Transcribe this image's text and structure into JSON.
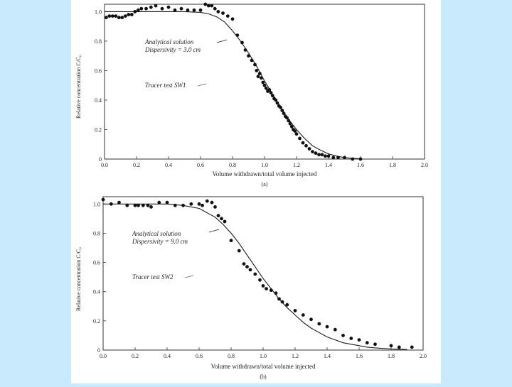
{
  "colors": {
    "background": "#c8eafc",
    "sheet": "#ffffff",
    "ink": "#1a1a1a"
  },
  "chart_data": [
    {
      "type": "scatter",
      "panel": "(a)",
      "xlabel": "Volume withdrawn/total volume injected",
      "ylabel": "Relative concentration C/C₀",
      "xlim": [
        0.0,
        2.0
      ],
      "ylim": [
        0.0,
        1.0
      ],
      "xticks": [
        "0.0",
        "0.2",
        "0.4",
        "0.6",
        "0.8",
        "1.0",
        "1.2",
        "1.4",
        "1.6",
        "1.8",
        "2.0"
      ],
      "yticks": [
        "0",
        "0.2",
        "0.4",
        "0.6",
        "0.8",
        "1.0"
      ],
      "annotations": [
        "Analytical solution",
        "Dispersivity = 3.0 cm",
        "Tracer test SW1"
      ],
      "series": [
        {
          "name": "Analytical solution",
          "kind": "line",
          "x": [
            0.0,
            0.1,
            0.2,
            0.3,
            0.4,
            0.5,
            0.6,
            0.65,
            0.7,
            0.75,
            0.8,
            0.85,
            0.9,
            0.95,
            1.0,
            1.05,
            1.1,
            1.15,
            1.2,
            1.25,
            1.3,
            1.35,
            1.4,
            1.45,
            1.5,
            1.55,
            1.6
          ],
          "y": [
            1.0,
            1.0,
            1.0,
            1.0,
            1.0,
            1.0,
            0.995,
            0.985,
            0.965,
            0.93,
            0.87,
            0.8,
            0.72,
            0.63,
            0.53,
            0.44,
            0.35,
            0.27,
            0.2,
            0.14,
            0.09,
            0.06,
            0.035,
            0.02,
            0.01,
            0.005,
            0.002
          ]
        },
        {
          "name": "Tracer test SW1",
          "kind": "scatter",
          "x": [
            0.01,
            0.03,
            0.05,
            0.07,
            0.09,
            0.11,
            0.13,
            0.15,
            0.17,
            0.19,
            0.21,
            0.23,
            0.26,
            0.29,
            0.32,
            0.36,
            0.4,
            0.44,
            0.48,
            0.52,
            0.56,
            0.6,
            0.63,
            0.65,
            0.67,
            0.69,
            0.71,
            0.74,
            0.77,
            0.8,
            0.83,
            0.86,
            0.88,
            0.9,
            0.92,
            0.94,
            0.95,
            0.96,
            0.97,
            0.98,
            0.99,
            1.0,
            1.01,
            1.02,
            1.03,
            1.04,
            1.05,
            1.06,
            1.07,
            1.08,
            1.09,
            1.1,
            1.11,
            1.12,
            1.13,
            1.14,
            1.15,
            1.16,
            1.17,
            1.18,
            1.19,
            1.2,
            1.22,
            1.24,
            1.26,
            1.28,
            1.3,
            1.32,
            1.34,
            1.36,
            1.38,
            1.4,
            1.43,
            1.46,
            1.5,
            1.55,
            1.6
          ],
          "y": [
            0.96,
            0.97,
            0.97,
            0.97,
            0.96,
            0.96,
            0.97,
            0.98,
            0.98,
            1.0,
            1.01,
            1.02,
            1.02,
            1.03,
            1.04,
            1.02,
            1.03,
            1.01,
            1.02,
            1.01,
            1.01,
            1.01,
            1.05,
            1.04,
            1.04,
            1.02,
            1.0,
            0.99,
            0.97,
            0.95,
            0.84,
            0.79,
            0.74,
            0.7,
            0.67,
            0.64,
            0.6,
            0.56,
            0.58,
            0.55,
            0.52,
            0.5,
            0.48,
            0.46,
            0.47,
            0.45,
            0.43,
            0.41,
            0.4,
            0.38,
            0.36,
            0.35,
            0.33,
            0.31,
            0.29,
            0.28,
            0.26,
            0.24,
            0.22,
            0.2,
            0.19,
            0.17,
            0.14,
            0.11,
            0.09,
            0.07,
            0.05,
            0.04,
            0.03,
            0.03,
            0.02,
            0.02,
            0.01,
            0.01,
            0.01,
            0.0,
            0.0
          ]
        }
      ]
    },
    {
      "type": "scatter",
      "panel": "(b)",
      "xlabel": "Volume withdrawn/total volume injected",
      "ylabel": "Relative concentration C/C₀",
      "xlim": [
        0.0,
        2.0
      ],
      "ylim": [
        0.0,
        1.0
      ],
      "xticks": [
        "0.0",
        "0.2",
        "0.4",
        "0.6",
        "0.8",
        "1.0",
        "1.2",
        "1.4",
        "1.6",
        "1.8",
        "2.0"
      ],
      "yticks": [
        "0",
        "0.2",
        "0.4",
        "0.6",
        "0.8",
        "1.0"
      ],
      "annotations": [
        "Analytical solution",
        "Dispersivity = 9.0 cm",
        "Tracer test SW2"
      ],
      "series": [
        {
          "name": "Analytical solution",
          "kind": "line",
          "x": [
            0.0,
            0.1,
            0.2,
            0.3,
            0.4,
            0.5,
            0.6,
            0.7,
            0.75,
            0.8,
            0.85,
            0.9,
            0.95,
            1.0,
            1.05,
            1.1,
            1.15,
            1.2,
            1.25,
            1.3,
            1.35,
            1.4,
            1.45,
            1.5,
            1.55,
            1.6,
            1.65,
            1.7,
            1.8,
            1.9
          ],
          "y": [
            1.0,
            1.0,
            1.0,
            1.0,
            1.0,
            0.99,
            0.97,
            0.91,
            0.86,
            0.8,
            0.73,
            0.65,
            0.57,
            0.49,
            0.42,
            0.35,
            0.29,
            0.24,
            0.19,
            0.15,
            0.12,
            0.09,
            0.07,
            0.05,
            0.04,
            0.03,
            0.02,
            0.015,
            0.008,
            0.004
          ]
        },
        {
          "name": "Tracer test SW2",
          "kind": "scatter",
          "x": [
            0.0,
            0.05,
            0.1,
            0.15,
            0.2,
            0.22,
            0.25,
            0.28,
            0.3,
            0.35,
            0.4,
            0.45,
            0.5,
            0.55,
            0.6,
            0.62,
            0.65,
            0.68,
            0.7,
            0.72,
            0.74,
            0.76,
            0.8,
            0.85,
            0.88,
            0.9,
            0.92,
            0.95,
            0.98,
            1.0,
            1.02,
            1.05,
            1.08,
            1.1,
            1.12,
            1.15,
            1.2,
            1.25,
            1.3,
            1.35,
            1.4,
            1.45,
            1.5,
            1.55,
            1.6,
            1.65,
            1.7,
            1.8,
            1.85,
            1.93
          ],
          "y": [
            1.03,
            1.0,
            1.01,
            0.99,
            0.99,
            0.99,
            0.99,
            0.99,
            0.98,
            1.01,
            1.01,
            0.99,
            0.99,
            1.0,
            1.0,
            0.99,
            1.02,
            1.01,
            0.98,
            0.92,
            0.9,
            0.88,
            0.75,
            0.68,
            0.59,
            0.57,
            0.55,
            0.52,
            0.48,
            0.44,
            0.42,
            0.41,
            0.39,
            0.35,
            0.33,
            0.31,
            0.27,
            0.24,
            0.21,
            0.18,
            0.16,
            0.14,
            0.1,
            0.08,
            0.07,
            0.05,
            0.04,
            0.03,
            0.02,
            0.02
          ]
        }
      ]
    }
  ],
  "captions": {
    "panel_a": "(a)",
    "panel_b": "(b)"
  }
}
